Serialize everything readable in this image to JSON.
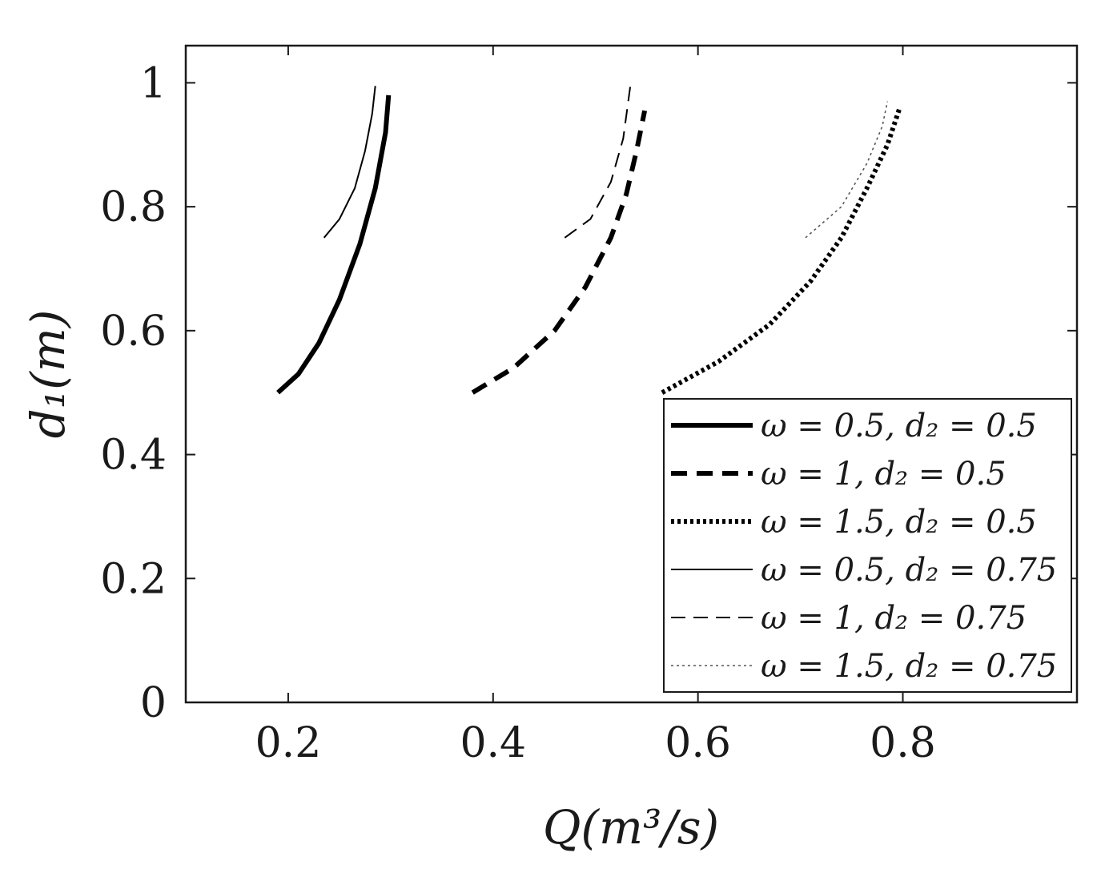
{
  "chart_data": {
    "type": "line",
    "xlabel": "Q(m³/s)",
    "ylabel": "d₁(m)",
    "xlim": [
      0.1,
      0.97
    ],
    "ylim": [
      0,
      1.06
    ],
    "xticks": [
      0.2,
      0.4,
      0.6,
      0.8
    ],
    "yticks": [
      0,
      0.2,
      0.4,
      0.6,
      0.8,
      1
    ],
    "xtick_labels": [
      "0.2",
      "0.4",
      "0.6",
      "0.8"
    ],
    "ytick_labels": [
      "0",
      "0.2",
      "0.4",
      "0.6",
      "0.8",
      "1"
    ],
    "legend_position": "bottom-right",
    "grid": false,
    "series": [
      {
        "name": "ω = 0.5, d₂ = 0.5",
        "style": "thick-solid",
        "color": "#000000",
        "x": [
          0.19,
          0.21,
          0.23,
          0.25,
          0.27,
          0.285,
          0.295,
          0.298
        ],
        "y": [
          0.5,
          0.53,
          0.58,
          0.65,
          0.74,
          0.83,
          0.92,
          0.98
        ]
      },
      {
        "name": "ω = 1, d₂ = 0.5",
        "style": "thick-dashed",
        "color": "#000000",
        "x": [
          0.38,
          0.42,
          0.46,
          0.49,
          0.515,
          0.53,
          0.54,
          0.548
        ],
        "y": [
          0.5,
          0.54,
          0.6,
          0.67,
          0.75,
          0.82,
          0.89,
          0.955
        ]
      },
      {
        "name": "ω = 1.5, d₂ = 0.5",
        "style": "thick-dotted",
        "color": "#000000",
        "x": [
          0.565,
          0.62,
          0.67,
          0.71,
          0.74,
          0.765,
          0.785,
          0.797
        ],
        "y": [
          0.5,
          0.55,
          0.61,
          0.68,
          0.75,
          0.83,
          0.9,
          0.96
        ]
      },
      {
        "name": "ω = 0.5, d₂ = 0.75",
        "style": "thin-solid",
        "color": "#000000",
        "x": [
          0.235,
          0.25,
          0.265,
          0.275,
          0.282,
          0.285
        ],
        "y": [
          0.75,
          0.78,
          0.83,
          0.89,
          0.95,
          0.995
        ]
      },
      {
        "name": "ω = 1, d₂ = 0.75",
        "style": "thin-dashed",
        "color": "#000000",
        "x": [
          0.47,
          0.495,
          0.515,
          0.527,
          0.534
        ],
        "y": [
          0.75,
          0.78,
          0.84,
          0.91,
          0.995
        ]
      },
      {
        "name": "ω = 1.5, d₂ = 0.75",
        "style": "thin-dotted",
        "color": "#555555",
        "x": [
          0.705,
          0.74,
          0.765,
          0.78,
          0.785
        ],
        "y": [
          0.75,
          0.8,
          0.87,
          0.93,
          0.97
        ]
      }
    ]
  }
}
